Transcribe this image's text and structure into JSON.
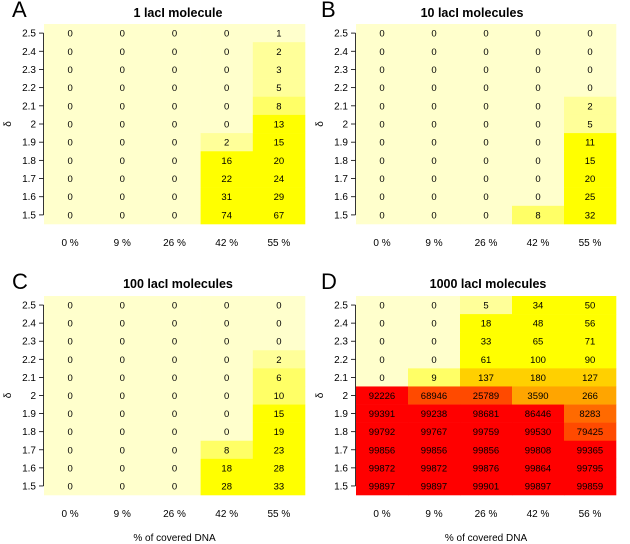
{
  "chart_data": [
    {
      "type": "heatmap",
      "panel": "A",
      "title": "1 lacI molecule",
      "x": [
        "0 %",
        "9 %",
        "26 %",
        "42 %",
        "55 %"
      ],
      "y": [
        "2.5",
        "2.4",
        "2.3",
        "2.2",
        "2.1",
        "2",
        "1.9",
        "1.8",
        "1.7",
        "1.6",
        "1.5"
      ],
      "ylabel": "δ",
      "xlabel": "",
      "values": [
        [
          0,
          0,
          0,
          0,
          1
        ],
        [
          0,
          0,
          0,
          0,
          2
        ],
        [
          0,
          0,
          0,
          0,
          3
        ],
        [
          0,
          0,
          0,
          0,
          5
        ],
        [
          0,
          0,
          0,
          0,
          8
        ],
        [
          0,
          0,
          0,
          0,
          13
        ],
        [
          0,
          0,
          0,
          2,
          15
        ],
        [
          0,
          0,
          0,
          16,
          20
        ],
        [
          0,
          0,
          0,
          22,
          24
        ],
        [
          0,
          0,
          0,
          31,
          29
        ],
        [
          0,
          0,
          0,
          74,
          67
        ]
      ]
    },
    {
      "type": "heatmap",
      "panel": "B",
      "title": "10 lacI molecules",
      "x": [
        "0 %",
        "9 %",
        "26 %",
        "42 %",
        "55 %"
      ],
      "y": [
        "2.5",
        "2.4",
        "2.3",
        "2.2",
        "2.1",
        "2",
        "1.9",
        "1.8",
        "1.7",
        "1.6",
        "1.5"
      ],
      "ylabel": "δ",
      "xlabel": "",
      "values": [
        [
          0,
          0,
          0,
          0,
          0
        ],
        [
          0,
          0,
          0,
          0,
          0
        ],
        [
          0,
          0,
          0,
          0,
          0
        ],
        [
          0,
          0,
          0,
          0,
          0
        ],
        [
          0,
          0,
          0,
          0,
          2
        ],
        [
          0,
          0,
          0,
          0,
          5
        ],
        [
          0,
          0,
          0,
          0,
          11
        ],
        [
          0,
          0,
          0,
          0,
          15
        ],
        [
          0,
          0,
          0,
          0,
          20
        ],
        [
          0,
          0,
          0,
          0,
          25
        ],
        [
          0,
          0,
          0,
          8,
          32
        ]
      ]
    },
    {
      "type": "heatmap",
      "panel": "C",
      "title": "100 lacI molecules",
      "x": [
        "0 %",
        "9 %",
        "26 %",
        "42 %",
        "55 %"
      ],
      "y": [
        "2.5",
        "2.4",
        "2.3",
        "2.2",
        "2.1",
        "2",
        "1.9",
        "1.8",
        "1.7",
        "1.6",
        "1.5"
      ],
      "ylabel": "δ",
      "xlabel": "% of covered DNA",
      "values": [
        [
          0,
          0,
          0,
          0,
          0
        ],
        [
          0,
          0,
          0,
          0,
          0
        ],
        [
          0,
          0,
          0,
          0,
          0
        ],
        [
          0,
          0,
          0,
          0,
          2
        ],
        [
          0,
          0,
          0,
          0,
          6
        ],
        [
          0,
          0,
          0,
          0,
          10
        ],
        [
          0,
          0,
          0,
          0,
          15
        ],
        [
          0,
          0,
          0,
          0,
          19
        ],
        [
          0,
          0,
          0,
          8,
          23
        ],
        [
          0,
          0,
          0,
          18,
          28
        ],
        [
          0,
          0,
          0,
          28,
          33
        ]
      ]
    },
    {
      "type": "heatmap",
      "panel": "D",
      "title": "1000 lacI molecules",
      "x": [
        "0 %",
        "9 %",
        "26 %",
        "42 %",
        "56 %"
      ],
      "y": [
        "2.5",
        "2.4",
        "2.3",
        "2.2",
        "2.1",
        "2",
        "1.9",
        "1.8",
        "1.7",
        "1.6",
        "1.5"
      ],
      "ylabel": "δ",
      "xlabel": "% of covered DNA",
      "values": [
        [
          0,
          0,
          5,
          34,
          50
        ],
        [
          0,
          0,
          18,
          48,
          56
        ],
        [
          0,
          0,
          33,
          65,
          71
        ],
        [
          0,
          0,
          61,
          100,
          90
        ],
        [
          0,
          9,
          137,
          180,
          127
        ],
        [
          92226,
          68946,
          25789,
          3590,
          266
        ],
        [
          99391,
          99238,
          98681,
          86446,
          8283
        ],
        [
          99792,
          99767,
          99759,
          99530,
          79425
        ],
        [
          99856,
          99856,
          99856,
          99808,
          99365
        ],
        [
          99872,
          99872,
          99876,
          99864,
          99795
        ],
        [
          99897,
          99897,
          99901,
          99897,
          99859
        ]
      ]
    }
  ],
  "colors": {
    "pale": "#ffffcc",
    "light": "#ffff99",
    "mid": "#ffff66",
    "yellow": "#ffff00",
    "amber": "#ffd000",
    "orange": "#ffa500",
    "deep_orange": "#ff6a00",
    "red_orange": "#ff4a00",
    "red": "#ff0000"
  }
}
